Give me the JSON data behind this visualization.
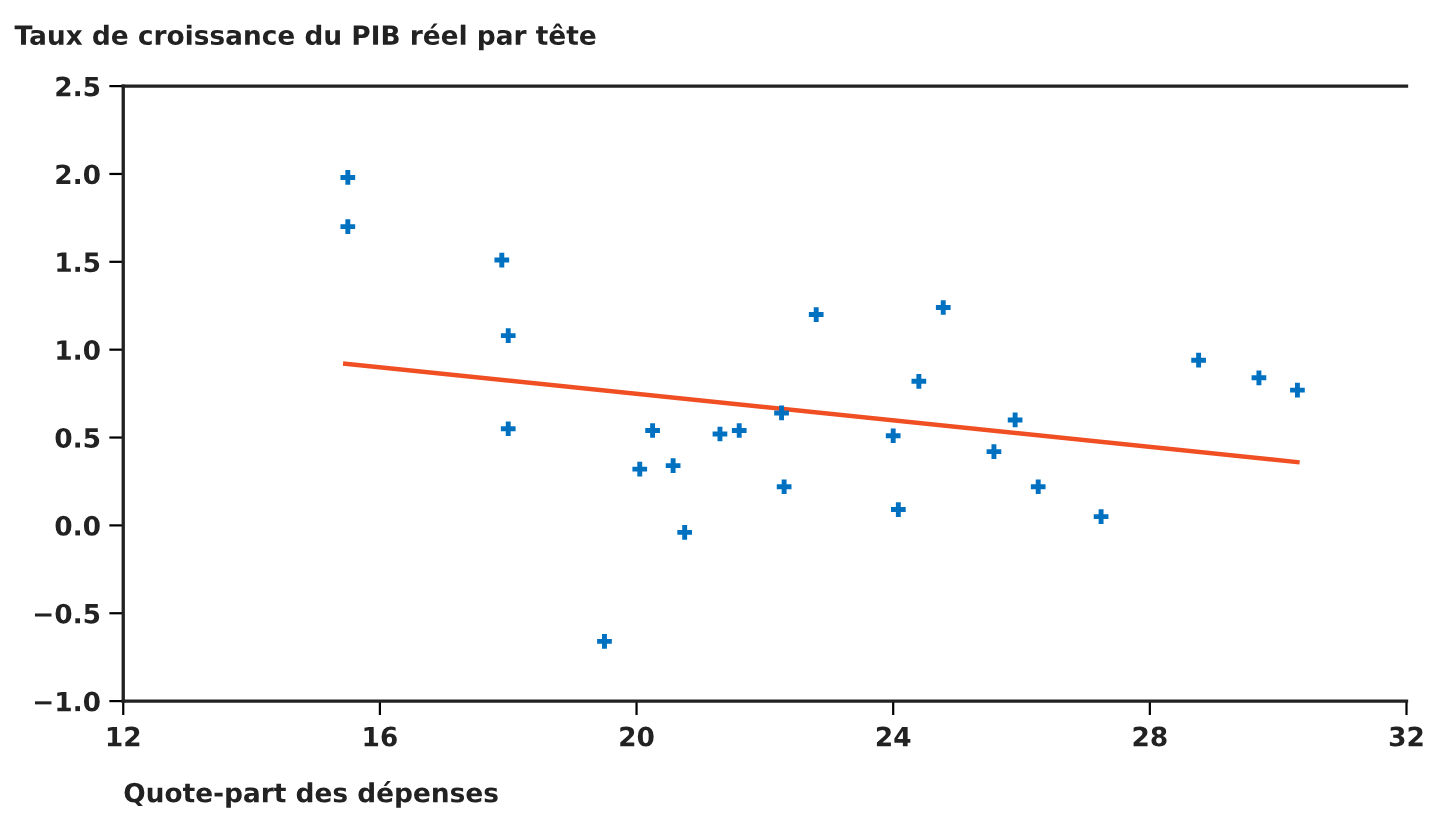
{
  "chart_data": {
    "type": "scatter",
    "title": "Taux de croissance du PIB réel par tête",
    "xlabel": "Quote-part des dépenses",
    "xlim": [
      12,
      32
    ],
    "xticks": [
      12,
      16,
      20,
      24,
      28,
      32
    ],
    "ylim": [
      -1.0,
      2.5
    ],
    "yticks": [
      {
        "value": -1.0,
        "label": "−1.0"
      },
      {
        "value": -0.5,
        "label": "−0.5"
      },
      {
        "value": 0.0,
        "label": "0.0"
      },
      {
        "value": 0.5,
        "label": "0.5"
      },
      {
        "value": 1.0,
        "label": "1.0"
      },
      {
        "value": 1.5,
        "label": "1.5"
      },
      {
        "value": 2.0,
        "label": "2.0"
      },
      {
        "value": 2.5,
        "label": "2.5"
      }
    ],
    "grid": false,
    "legend": false,
    "series": [
      {
        "marker": "cross",
        "color": "#0070c0",
        "x": [
          15.5,
          15.5,
          17.9,
          18.0,
          18.0,
          19.5,
          20.05,
          20.25,
          20.57,
          20.75,
          21.3,
          21.6,
          22.26,
          22.3,
          22.8,
          24.0,
          24.08,
          24.4,
          24.78,
          25.57,
          25.9,
          26.26,
          27.24,
          28.76,
          29.7,
          30.3
        ],
        "values": [
          1.98,
          1.7,
          1.51,
          1.08,
          0.55,
          -0.66,
          0.32,
          0.54,
          0.34,
          -0.04,
          0.52,
          0.54,
          0.64,
          0.22,
          1.2,
          0.51,
          0.09,
          0.82,
          1.24,
          0.42,
          0.6,
          0.22,
          0.05,
          0.94,
          0.84,
          0.77
        ]
      },
      {
        "type": "line",
        "color": "#f04e23",
        "x": [
          15.46,
          30.3
        ],
        "values": [
          0.92,
          0.36
        ]
      }
    ]
  }
}
